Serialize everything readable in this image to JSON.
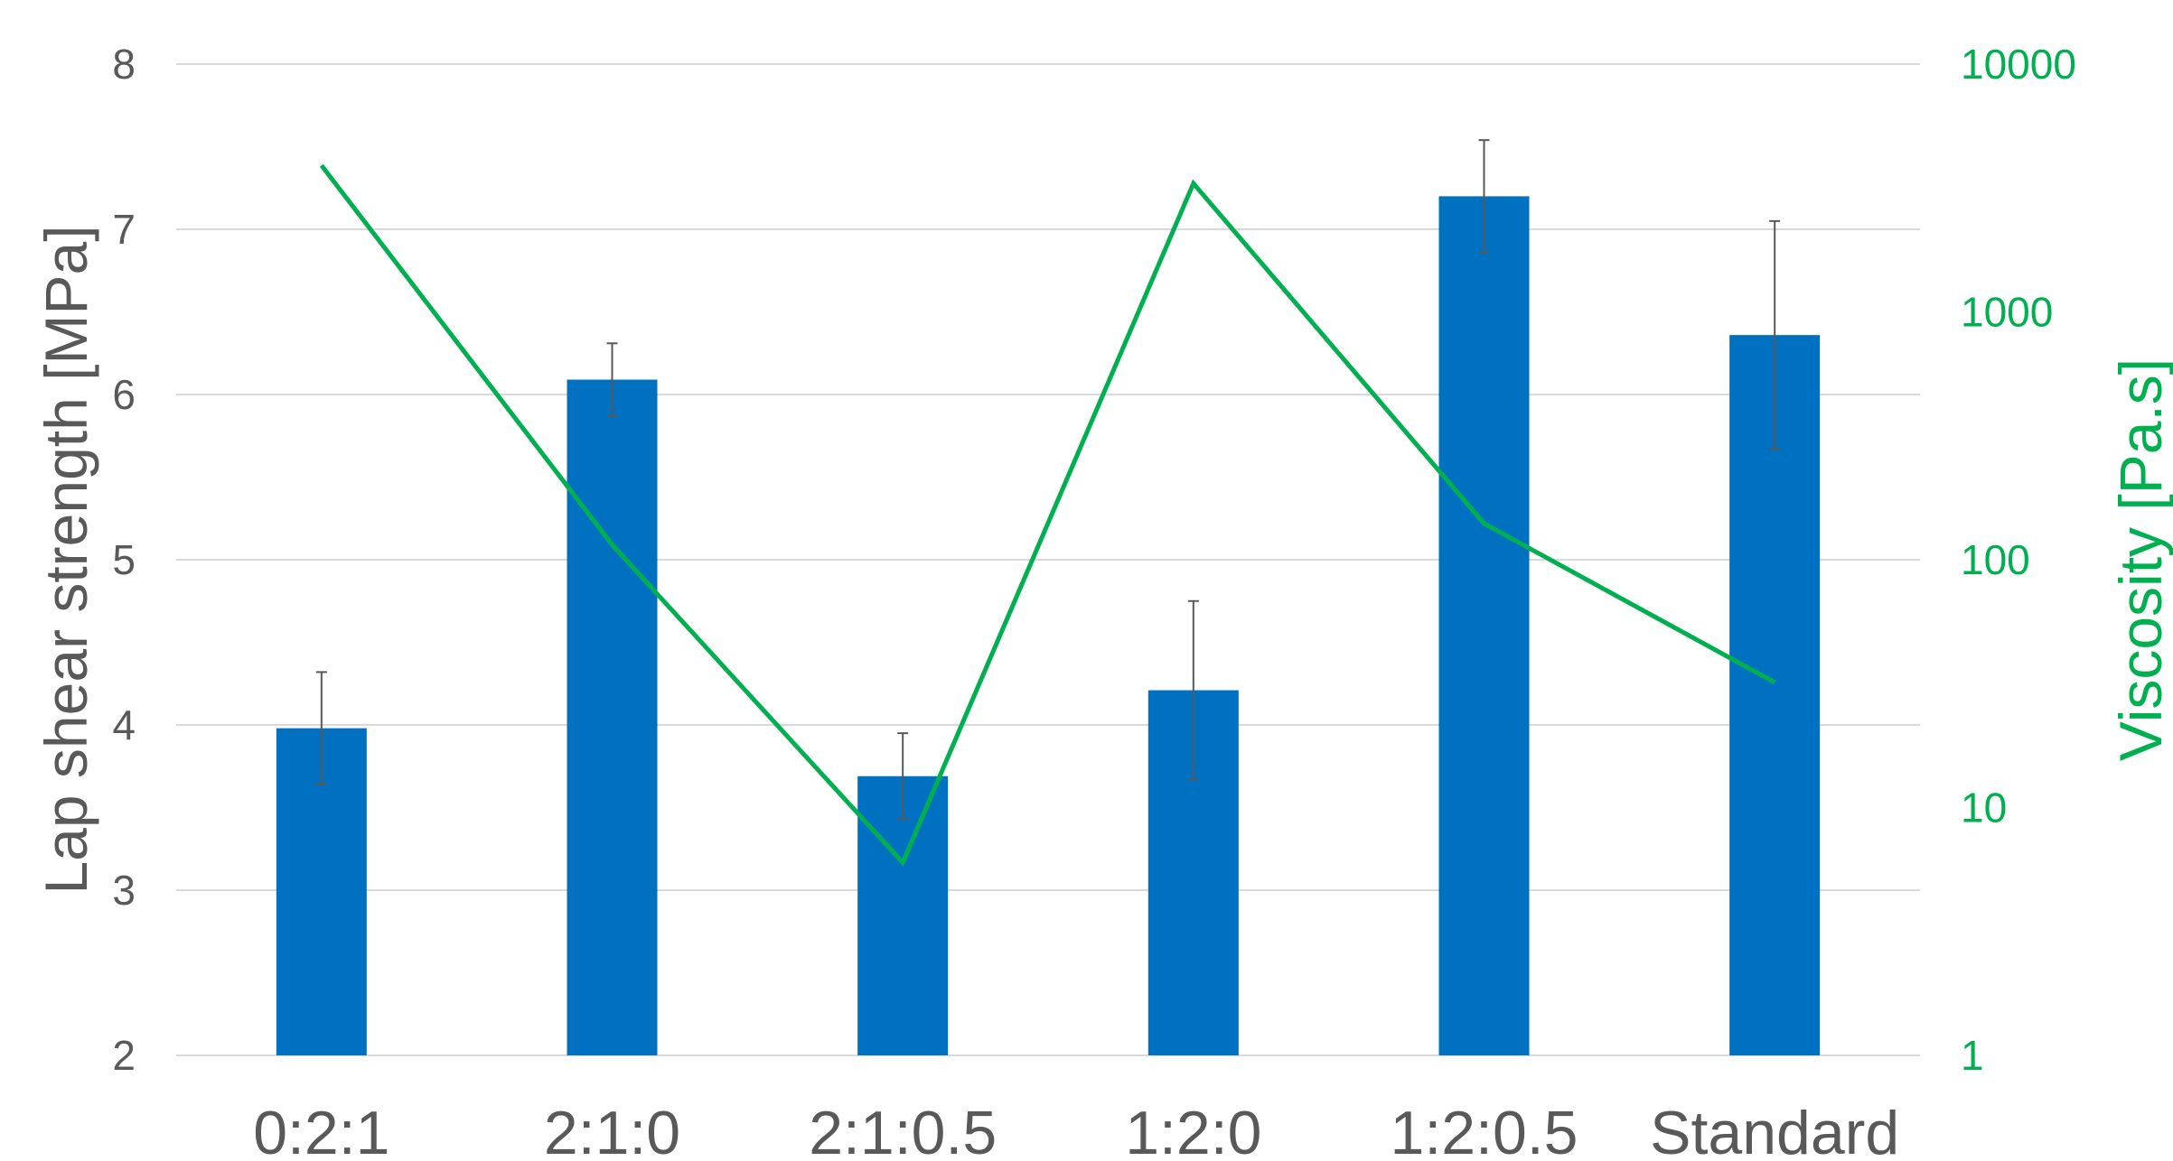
{
  "chart_data": {
    "type": "bar",
    "categories": [
      "0:2:1",
      "2:1:0",
      "2:1:0.5",
      "1:2:0",
      "1:2:0.5",
      "Standard"
    ],
    "series": [
      {
        "kind": "bar",
        "axis": "left",
        "values": [
          3.98,
          6.09,
          3.69,
          4.21,
          7.2,
          6.36
        ],
        "error": [
          0.34,
          0.22,
          0.26,
          0.54,
          0.34,
          0.69
        ],
        "color": "#0070C0"
      },
      {
        "kind": "line",
        "axis": "right",
        "values": [
          3900,
          115,
          6,
          3300,
          140,
          32
        ],
        "color": "#00B050"
      }
    ],
    "ylabel": "Lap shear strength [MPa]",
    "ylabel_right": "Viscosity [Pa.s]",
    "ylim": [
      2,
      8
    ],
    "ylim_right": [
      1,
      10000
    ],
    "yscale_right": "log",
    "yticks": [
      "2",
      "3",
      "4",
      "5",
      "6",
      "7",
      "8"
    ],
    "yticks_right": [
      "1",
      "10",
      "100",
      "1000",
      "10000"
    ],
    "grid": true,
    "gridline_color": "#D9D9D9",
    "error_bar_color": "#595959"
  }
}
